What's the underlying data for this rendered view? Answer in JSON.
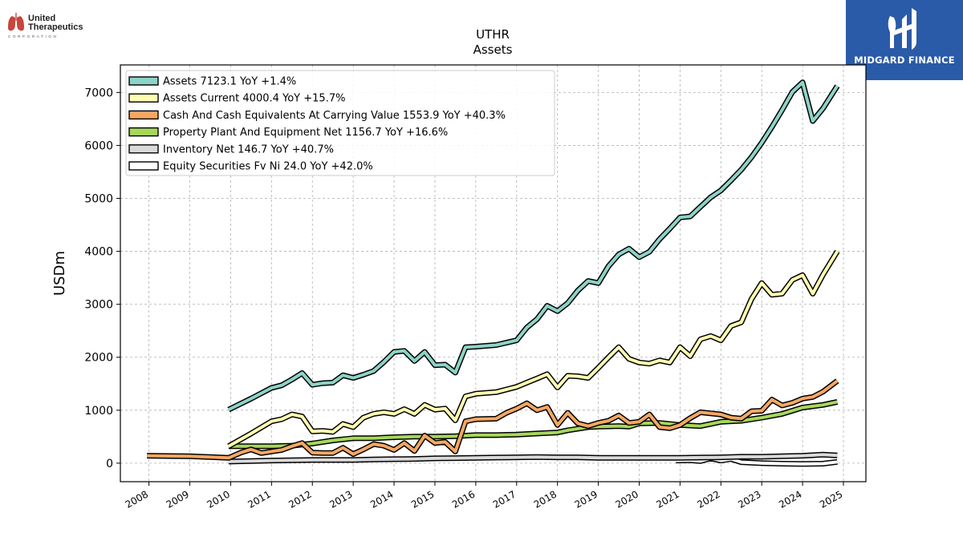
{
  "logos": {
    "company_line1": "United",
    "company_line2": "Therapeutics",
    "company_line3": "CORPORATION",
    "publisher": "MIDGARD FINANCE"
  },
  "chart_data": {
    "type": "line",
    "title": "UTHR",
    "subtitle": "Assets",
    "ylabel": "USDm",
    "xlabel": "",
    "xlim": [
      2007.3,
      2025.55
    ],
    "ylim": [
      -350,
      7520
    ],
    "x_ticks": [
      "2008",
      "2009",
      "2010",
      "2011",
      "2012",
      "2013",
      "2014",
      "2015",
      "2016",
      "2017",
      "2018",
      "2019",
      "2020",
      "2021",
      "2022",
      "2023",
      "2024",
      "2025"
    ],
    "y_ticks": [
      "0",
      "1000",
      "2000",
      "3000",
      "4000",
      "5000",
      "6000",
      "7000"
    ],
    "grid": true,
    "legend_position": "top-left",
    "series": [
      {
        "name": "Assets",
        "legend": "Assets  7123.1 YoY +1.4%",
        "color": "#8dd3c7",
        "points": [
          [
            2009.95,
            1010
          ],
          [
            2010.5,
            1220
          ],
          [
            2011.0,
            1420
          ],
          [
            2011.25,
            1470
          ],
          [
            2011.5,
            1580
          ],
          [
            2011.75,
            1700
          ],
          [
            2012.0,
            1480
          ],
          [
            2012.25,
            1510
          ],
          [
            2012.5,
            1520
          ],
          [
            2012.75,
            1660
          ],
          [
            2013.0,
            1610
          ],
          [
            2013.25,
            1670
          ],
          [
            2013.5,
            1740
          ],
          [
            2013.75,
            1910
          ],
          [
            2014.0,
            2100
          ],
          [
            2014.25,
            2120
          ],
          [
            2014.5,
            1930
          ],
          [
            2014.75,
            2100
          ],
          [
            2015.0,
            1850
          ],
          [
            2015.25,
            1860
          ],
          [
            2015.5,
            1710
          ],
          [
            2015.75,
            2190
          ],
          [
            2016.0,
            2200
          ],
          [
            2016.5,
            2230
          ],
          [
            2017.0,
            2320
          ],
          [
            2017.25,
            2560
          ],
          [
            2017.5,
            2720
          ],
          [
            2017.75,
            2970
          ],
          [
            2018.0,
            2870
          ],
          [
            2018.25,
            3020
          ],
          [
            2018.5,
            3260
          ],
          [
            2018.75,
            3440
          ],
          [
            2019.0,
            3400
          ],
          [
            2019.25,
            3720
          ],
          [
            2019.5,
            3940
          ],
          [
            2019.75,
            4050
          ],
          [
            2020.0,
            3890
          ],
          [
            2020.25,
            3990
          ],
          [
            2020.5,
            4230
          ],
          [
            2020.75,
            4430
          ],
          [
            2021.0,
            4640
          ],
          [
            2021.25,
            4660
          ],
          [
            2021.5,
            4840
          ],
          [
            2021.75,
            5020
          ],
          [
            2022.0,
            5150
          ],
          [
            2022.25,
            5340
          ],
          [
            2022.5,
            5540
          ],
          [
            2022.75,
            5780
          ],
          [
            2023.0,
            6050
          ],
          [
            2023.25,
            6350
          ],
          [
            2023.5,
            6670
          ],
          [
            2023.75,
            7010
          ],
          [
            2024.0,
            7190
          ],
          [
            2024.25,
            6460
          ],
          [
            2024.5,
            6700
          ],
          [
            2024.85,
            7123
          ]
        ]
      },
      {
        "name": "Assets Current",
        "legend": "Assets Current  4000.4 YoY +15.7%",
        "color": "#ffffb3",
        "points": [
          [
            2009.95,
            320
          ],
          [
            2010.5,
            560
          ],
          [
            2011.0,
            790
          ],
          [
            2011.25,
            830
          ],
          [
            2011.5,
            920
          ],
          [
            2011.75,
            880
          ],
          [
            2012.0,
            600
          ],
          [
            2012.25,
            610
          ],
          [
            2012.5,
            590
          ],
          [
            2012.75,
            740
          ],
          [
            2013.0,
            680
          ],
          [
            2013.25,
            860
          ],
          [
            2013.5,
            930
          ],
          [
            2013.75,
            960
          ],
          [
            2014.0,
            930
          ],
          [
            2014.25,
            1020
          ],
          [
            2014.5,
            930
          ],
          [
            2014.75,
            1100
          ],
          [
            2015.0,
            1010
          ],
          [
            2015.25,
            1030
          ],
          [
            2015.5,
            810
          ],
          [
            2015.75,
            1260
          ],
          [
            2016.0,
            1310
          ],
          [
            2016.5,
            1340
          ],
          [
            2017.0,
            1440
          ],
          [
            2017.25,
            1520
          ],
          [
            2017.5,
            1600
          ],
          [
            2017.75,
            1680
          ],
          [
            2018.0,
            1430
          ],
          [
            2018.25,
            1650
          ],
          [
            2018.5,
            1640
          ],
          [
            2018.75,
            1610
          ],
          [
            2019.0,
            1800
          ],
          [
            2019.25,
            2000
          ],
          [
            2019.5,
            2190
          ],
          [
            2019.75,
            1970
          ],
          [
            2020.0,
            1900
          ],
          [
            2020.25,
            1880
          ],
          [
            2020.5,
            1940
          ],
          [
            2020.75,
            1900
          ],
          [
            2021.0,
            2190
          ],
          [
            2021.25,
            2020
          ],
          [
            2021.5,
            2340
          ],
          [
            2021.75,
            2400
          ],
          [
            2022.0,
            2320
          ],
          [
            2022.25,
            2590
          ],
          [
            2022.5,
            2660
          ],
          [
            2022.75,
            3100
          ],
          [
            2023.0,
            3400
          ],
          [
            2023.25,
            3180
          ],
          [
            2023.5,
            3200
          ],
          [
            2023.75,
            3460
          ],
          [
            2024.0,
            3550
          ],
          [
            2024.25,
            3200
          ],
          [
            2024.5,
            3560
          ],
          [
            2024.85,
            4000
          ]
        ]
      },
      {
        "name": "Cash And Cash Equivalents At Carrying Value",
        "legend": "Cash And Cash Equivalents At Carrying Value  1553.9 YoY +40.3%",
        "color": "#f4a763",
        "points": [
          [
            2007.95,
            140
          ],
          [
            2008.5,
            135
          ],
          [
            2009.0,
            130
          ],
          [
            2009.5,
            115
          ],
          [
            2009.95,
            100
          ],
          [
            2010.25,
            200
          ],
          [
            2010.5,
            260
          ],
          [
            2010.75,
            190
          ],
          [
            2011.0,
            220
          ],
          [
            2011.25,
            250
          ],
          [
            2011.5,
            320
          ],
          [
            2011.75,
            380
          ],
          [
            2012.0,
            200
          ],
          [
            2012.25,
            190
          ],
          [
            2012.5,
            190
          ],
          [
            2012.75,
            290
          ],
          [
            2013.0,
            170
          ],
          [
            2013.25,
            260
          ],
          [
            2013.5,
            360
          ],
          [
            2013.75,
            330
          ],
          [
            2014.0,
            250
          ],
          [
            2014.25,
            380
          ],
          [
            2014.5,
            230
          ],
          [
            2014.75,
            520
          ],
          [
            2015.0,
            380
          ],
          [
            2015.25,
            400
          ],
          [
            2015.5,
            220
          ],
          [
            2015.75,
            790
          ],
          [
            2016.0,
            830
          ],
          [
            2016.5,
            840
          ],
          [
            2016.75,
            950
          ],
          [
            2017.0,
            1030
          ],
          [
            2017.25,
            1130
          ],
          [
            2017.5,
            1000
          ],
          [
            2017.75,
            1060
          ],
          [
            2018.0,
            720
          ],
          [
            2018.25,
            950
          ],
          [
            2018.5,
            750
          ],
          [
            2018.75,
            700
          ],
          [
            2019.0,
            760
          ],
          [
            2019.25,
            800
          ],
          [
            2019.5,
            900
          ],
          [
            2019.75,
            760
          ],
          [
            2020.0,
            780
          ],
          [
            2020.25,
            920
          ],
          [
            2020.5,
            680
          ],
          [
            2020.75,
            660
          ],
          [
            2021.0,
            720
          ],
          [
            2021.25,
            850
          ],
          [
            2021.5,
            960
          ],
          [
            2021.75,
            940
          ],
          [
            2022.0,
            920
          ],
          [
            2022.25,
            860
          ],
          [
            2022.5,
            840
          ],
          [
            2022.75,
            980
          ],
          [
            2023.0,
            990
          ],
          [
            2023.25,
            1200
          ],
          [
            2023.5,
            1090
          ],
          [
            2023.75,
            1140
          ],
          [
            2024.0,
            1220
          ],
          [
            2024.25,
            1250
          ],
          [
            2024.5,
            1350
          ],
          [
            2024.85,
            1554
          ]
        ]
      },
      {
        "name": "Property Plant And Equipment Net",
        "legend": "Property Plant And Equipment Net  1156.7 YoY +16.6%",
        "color": "#a6d75b",
        "points": [
          [
            2009.95,
            320
          ],
          [
            2010.5,
            320
          ],
          [
            2011.0,
            320
          ],
          [
            2011.5,
            330
          ],
          [
            2012.0,
            370
          ],
          [
            2012.5,
            430
          ],
          [
            2013.0,
            470
          ],
          [
            2013.5,
            470
          ],
          [
            2014.0,
            490
          ],
          [
            2014.5,
            500
          ],
          [
            2015.0,
            500
          ],
          [
            2015.5,
            510
          ],
          [
            2016.0,
            530
          ],
          [
            2016.5,
            530
          ],
          [
            2017.0,
            540
          ],
          [
            2017.5,
            560
          ],
          [
            2018.0,
            580
          ],
          [
            2018.25,
            620
          ],
          [
            2018.5,
            650
          ],
          [
            2018.75,
            680
          ],
          [
            2019.0,
            690
          ],
          [
            2019.5,
            700
          ],
          [
            2019.75,
            690
          ],
          [
            2020.0,
            750
          ],
          [
            2020.5,
            760
          ],
          [
            2021.0,
            720
          ],
          [
            2021.5,
            700
          ],
          [
            2022.0,
            780
          ],
          [
            2022.5,
            800
          ],
          [
            2023.0,
            860
          ],
          [
            2023.5,
            930
          ],
          [
            2024.0,
            1050
          ],
          [
            2024.5,
            1100
          ],
          [
            2024.85,
            1157
          ]
        ]
      },
      {
        "name": "Inventory Net",
        "legend": "Inventory Net  146.7 YoY +40.7%",
        "color": "#d9d9d9",
        "points": [
          [
            2009.95,
            30
          ],
          [
            2010.5,
            40
          ],
          [
            2011.0,
            50
          ],
          [
            2011.5,
            55
          ],
          [
            2012.0,
            60
          ],
          [
            2012.5,
            60
          ],
          [
            2013.0,
            60
          ],
          [
            2013.5,
            70
          ],
          [
            2014.0,
            75
          ],
          [
            2014.5,
            80
          ],
          [
            2015.0,
            90
          ],
          [
            2015.5,
            95
          ],
          [
            2016.0,
            100
          ],
          [
            2016.5,
            105
          ],
          [
            2017.0,
            110
          ],
          [
            2017.5,
            115
          ],
          [
            2018.0,
            110
          ],
          [
            2018.5,
            110
          ],
          [
            2019.0,
            100
          ],
          [
            2019.5,
            100
          ],
          [
            2020.0,
            100
          ],
          [
            2020.5,
            100
          ],
          [
            2021.0,
            100
          ],
          [
            2021.5,
            105
          ],
          [
            2022.0,
            110
          ],
          [
            2022.5,
            120
          ],
          [
            2023.0,
            120
          ],
          [
            2023.5,
            130
          ],
          [
            2024.0,
            140
          ],
          [
            2024.5,
            160
          ],
          [
            2024.85,
            147
          ]
        ]
      },
      {
        "name": "Equity Securities Fv Ni",
        "legend": "Equity Securities Fv Ni  24.0 YoY +42.0%",
        "color": "#ffffff",
        "points": [
          [
            2020.9,
            50
          ],
          [
            2021.25,
            55
          ],
          [
            2021.5,
            40
          ],
          [
            2021.75,
            90
          ],
          [
            2022.0,
            50
          ],
          [
            2022.25,
            80
          ],
          [
            2022.5,
            20
          ],
          [
            2023.0,
            0
          ],
          [
            2023.5,
            -10
          ],
          [
            2024.0,
            -15
          ],
          [
            2024.5,
            -10
          ],
          [
            2024.85,
            24
          ]
        ]
      }
    ]
  }
}
